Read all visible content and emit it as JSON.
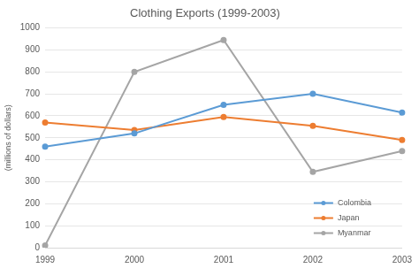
{
  "chart_data": {
    "type": "line",
    "title": "Clothing Exports (1999-2003)",
    "y_label": "(millions of dollars)",
    "categories": [
      "1999",
      "2000",
      "2001",
      "2002",
      "2003"
    ],
    "series": [
      {
        "name": "Colombia",
        "color": "#5b9bd5",
        "values": [
          460,
          520,
          650,
          700,
          615
        ]
      },
      {
        "name": "Japan",
        "color": "#ed7d31",
        "values": [
          570,
          535,
          595,
          555,
          490
        ]
      },
      {
        "name": "Myanmar",
        "color": "#a5a5a5",
        "values": [
          10,
          800,
          945,
          345,
          440
        ]
      }
    ],
    "ylim": [
      0,
      1000
    ],
    "yticks": [
      0,
      100,
      200,
      300,
      400,
      500,
      600,
      700,
      800,
      900,
      1000
    ],
    "grid": true,
    "legend": "lower right",
    "marker": "circle"
  }
}
